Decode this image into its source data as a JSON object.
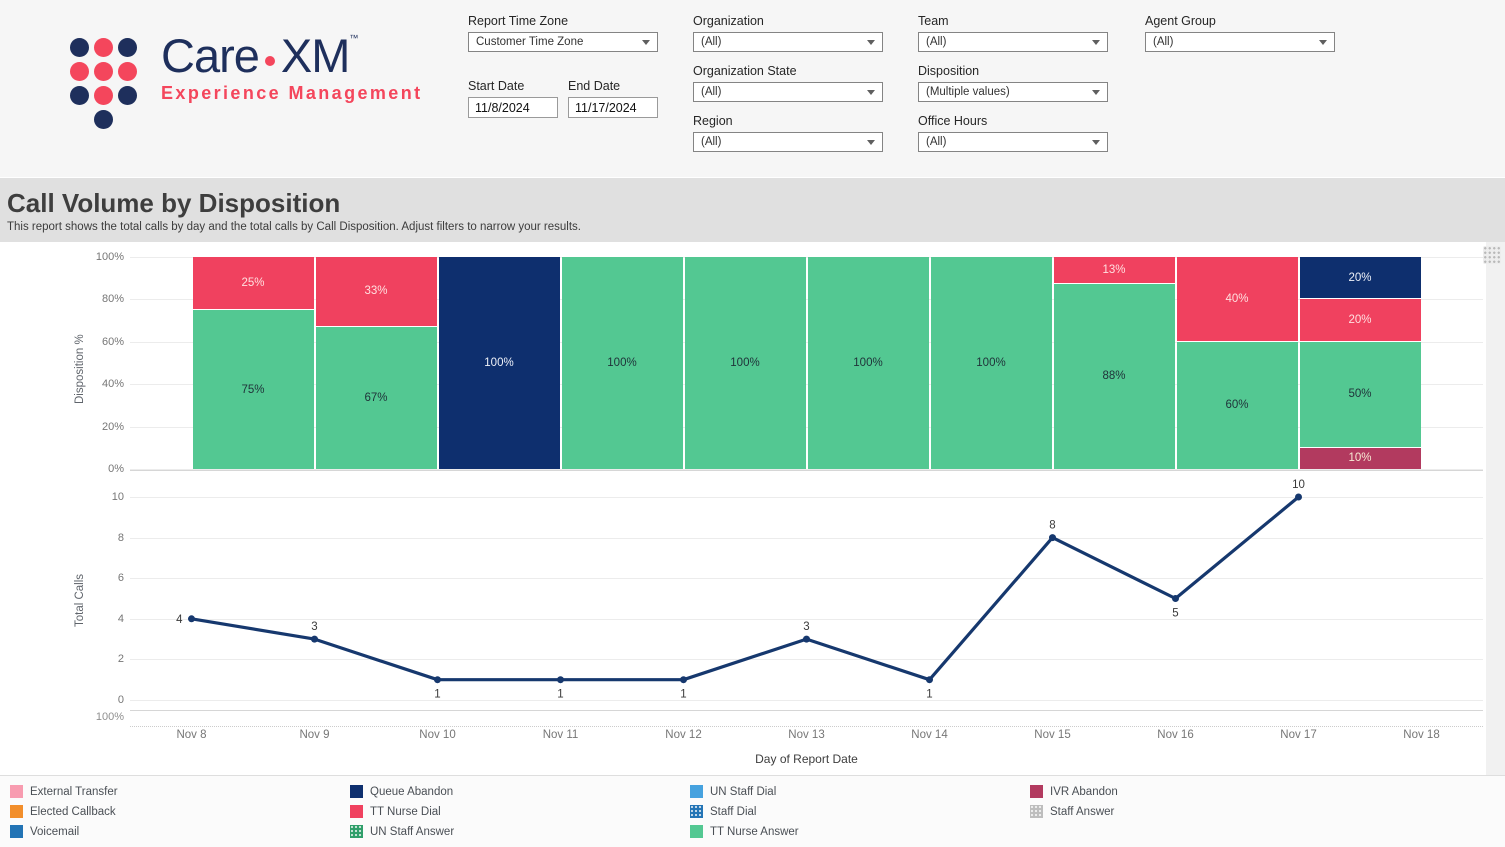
{
  "brand": {
    "word1": "Care",
    "word2": "XM",
    "tm": "™",
    "tagline": "Experience Management",
    "navy": "#1e2f5c",
    "red": "#f4465c",
    "dot_rows": [
      [
        "navy",
        "red",
        "navy"
      ],
      [
        "red",
        "red",
        "red"
      ],
      [
        "navy",
        "red",
        "navy"
      ],
      [
        "",
        "navy",
        ""
      ]
    ]
  },
  "page": {
    "title": "Call Volume by Disposition",
    "subtitle": "This report shows the total calls by day and the total calls by Call Disposition. Adjust filters to narrow your results."
  },
  "filters": {
    "report_time_zone": {
      "label": "Report Time Zone",
      "value": "Customer Time Zone"
    },
    "start_date": {
      "label": "Start Date",
      "value": "11/8/2024"
    },
    "end_date": {
      "label": "End Date",
      "value": "11/17/2024"
    },
    "organization": {
      "label": "Organization",
      "value": "(All)"
    },
    "organization_state": {
      "label": "Organization State",
      "value": "(All)"
    },
    "region": {
      "label": "Region",
      "value": "(All)"
    },
    "team": {
      "label": "Team",
      "value": "(All)"
    },
    "disposition": {
      "label": "Disposition",
      "value": "(Multiple values)"
    },
    "office_hours": {
      "label": "Office Hours",
      "value": "(All)"
    },
    "agent_group": {
      "label": "Agent Group",
      "value": "(All)"
    }
  },
  "axis": {
    "clipped_tick": "100%"
  },
  "chart_data": [
    {
      "type": "bar",
      "stacked": true,
      "percent": true,
      "title": "Disposition % by Day of Report Date",
      "ylabel": "Disposition %",
      "ylim": [
        0,
        100
      ],
      "yticks": [
        "100%",
        "80%",
        "60%",
        "40%",
        "20%",
        "0%"
      ],
      "grid": true,
      "categories": [
        "Nov 8",
        "Nov 9",
        "Nov 10",
        "Nov 11",
        "Nov 12",
        "Nov 13",
        "Nov 14",
        "Nov 15",
        "Nov 16",
        "Nov 17",
        "Nov 18"
      ],
      "palette": {
        "TT Nurse Answer": {
          "color": "#53c892",
          "label_color": "#20343a"
        },
        "TT Nurse Dial": {
          "color": "#f0415f",
          "label_color": "#ffe0e0"
        },
        "Queue Abandon": {
          "color": "#0e2f6e",
          "label_color": "#eef1f8"
        },
        "IVR Abandon": {
          "color": "#b23a5f",
          "label_color": "#f7ead4"
        }
      },
      "bars": [
        {
          "category": "Nov 8",
          "segments": [
            {
              "series": "TT Nurse Answer",
              "pct": 75,
              "label": "75%"
            },
            {
              "series": "TT Nurse Dial",
              "pct": 25,
              "label": "25%"
            }
          ]
        },
        {
          "category": "Nov 9",
          "segments": [
            {
              "series": "TT Nurse Answer",
              "pct": 67,
              "label": "67%"
            },
            {
              "series": "TT Nurse Dial",
              "pct": 33,
              "label": "33%"
            }
          ]
        },
        {
          "category": "Nov 10",
          "segments": [
            {
              "series": "Queue Abandon",
              "pct": 100,
              "label": "100%"
            }
          ]
        },
        {
          "category": "Nov 11",
          "segments": [
            {
              "series": "TT Nurse Answer",
              "pct": 100,
              "label": "100%"
            }
          ]
        },
        {
          "category": "Nov 12",
          "segments": [
            {
              "series": "TT Nurse Answer",
              "pct": 100,
              "label": "100%"
            }
          ]
        },
        {
          "category": "Nov 13",
          "segments": [
            {
              "series": "TT Nurse Answer",
              "pct": 100,
              "label": "100%"
            }
          ]
        },
        {
          "category": "Nov 14",
          "segments": [
            {
              "series": "TT Nurse Answer",
              "pct": 100,
              "label": "100%"
            }
          ]
        },
        {
          "category": "Nov 15",
          "segments": [
            {
              "series": "TT Nurse Answer",
              "pct": 87.5,
              "label": "88%"
            },
            {
              "series": "TT Nurse Dial",
              "pct": 12.5,
              "label": "13%"
            }
          ]
        },
        {
          "category": "Nov 16",
          "segments": [
            {
              "series": "TT Nurse Answer",
              "pct": 60,
              "label": "60%"
            },
            {
              "series": "TT Nurse Dial",
              "pct": 40,
              "label": "40%"
            }
          ]
        },
        {
          "category": "Nov 17",
          "segments": [
            {
              "series": "IVR Abandon",
              "pct": 10,
              "label": "10%"
            },
            {
              "series": "TT Nurse Answer",
              "pct": 50,
              "label": "50%"
            },
            {
              "series": "TT Nurse Dial",
              "pct": 20,
              "label": "20%"
            },
            {
              "series": "Queue Abandon",
              "pct": 20,
              "label": "20%"
            }
          ]
        },
        {
          "category": "Nov 18",
          "segments": []
        }
      ]
    },
    {
      "type": "line",
      "title": "Total Calls by Day of Report Date",
      "ylabel": "Total Calls",
      "xlabel": "Day of Report Date",
      "ylim": [
        0,
        10
      ],
      "yticks": [
        10,
        8,
        6,
        4,
        2,
        0
      ],
      "grid": true,
      "color": "#16386e",
      "x": [
        "Nov 8",
        "Nov 9",
        "Nov 10",
        "Nov 11",
        "Nov 12",
        "Nov 13",
        "Nov 14",
        "Nov 15",
        "Nov 16",
        "Nov 17"
      ],
      "values": [
        4,
        3,
        1,
        1,
        1,
        3,
        1,
        8,
        5,
        10
      ]
    }
  ],
  "legend": {
    "columns": [
      [
        {
          "label": "External Transfer",
          "color": "#f89cb0",
          "texture": "solid"
        },
        {
          "label": "Elected Callback",
          "color": "#f28e2b",
          "texture": "solid"
        },
        {
          "label": "Voicemail",
          "color": "#2374b5",
          "texture": "solid"
        }
      ],
      [
        {
          "label": "Queue Abandon",
          "color": "#0e2f6e",
          "texture": "solid"
        },
        {
          "label": "TT Nurse Dial",
          "color": "#f0415f",
          "texture": "solid"
        },
        {
          "label": "UN Staff Answer",
          "color": "#2f9e6a",
          "texture": "dots"
        }
      ],
      [
        {
          "label": "UN Staff Dial",
          "color": "#46a2df",
          "texture": "solid"
        },
        {
          "label": "Staff Dial",
          "color": "#2374b5",
          "texture": "dots"
        },
        {
          "label": "TT Nurse Answer",
          "color": "#53c892",
          "texture": "solid"
        }
      ],
      [
        {
          "label": "IVR Abandon",
          "color": "#b23a5f",
          "texture": "solid"
        },
        {
          "label": "Staff Answer",
          "color": "#bdbdbd",
          "texture": "dots"
        }
      ]
    ]
  }
}
